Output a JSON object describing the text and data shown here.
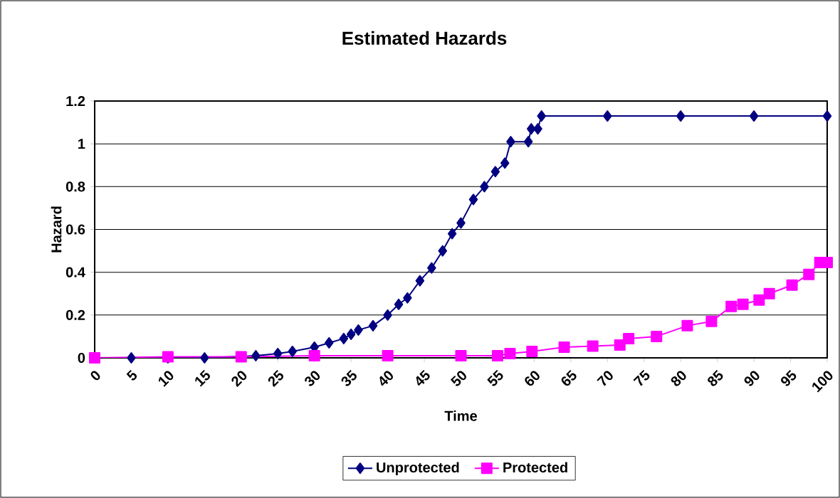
{
  "chart_data": {
    "type": "line",
    "title": "Estimated Hazards",
    "xlabel": "Time",
    "ylabel": "Hazard",
    "xlim": [
      0,
      100
    ],
    "xticks": [
      0,
      5,
      10,
      15,
      20,
      25,
      30,
      35,
      40,
      45,
      50,
      55,
      60,
      65,
      70,
      75,
      80,
      85,
      90,
      95,
      100
    ],
    "ylim": [
      0,
      1.2
    ],
    "yticks": [
      0,
      0.2,
      0.4,
      0.6,
      0.8,
      1,
      1.2
    ],
    "grid": "y",
    "legend": "bottom",
    "series": [
      {
        "name": "Unprotected",
        "color": "#000080",
        "marker": "diamond",
        "x": [
          0,
          5,
          10,
          15,
          20,
          22,
          25,
          27,
          30,
          32,
          34,
          35,
          36,
          38,
          40,
          41.5,
          42.7,
          44.4,
          46,
          47.5,
          48.8,
          50,
          51.7,
          53.2,
          54.7,
          56,
          56.8,
          59.2,
          59.6,
          60.5,
          61,
          70,
          80,
          90,
          100
        ],
        "values": [
          0,
          0,
          0,
          0,
          null,
          0.01,
          0.02,
          0.03,
          0.05,
          0.07,
          0.09,
          0.11,
          0.13,
          0.15,
          0.2,
          0.25,
          0.28,
          0.36,
          0.42,
          0.5,
          0.58,
          0.63,
          0.74,
          0.8,
          0.87,
          0.91,
          1.01,
          1.01,
          1.07,
          1.07,
          1.13,
          1.13,
          1.13,
          1.13,
          1.13
        ]
      },
      {
        "name": "Protected",
        "color": "#ff00ff",
        "marker": "square",
        "x": [
          0,
          10,
          20,
          30,
          40,
          50,
          55,
          56.7,
          59.7,
          64.1,
          68,
          71.7,
          72.9,
          76.7,
          80.9,
          84.2,
          86.9,
          88.5,
          90.7,
          92.1,
          95.2,
          97.5,
          99,
          100
        ],
        "values": [
          0,
          0.005,
          0.005,
          0.01,
          0.01,
          0.01,
          0.01,
          0.02,
          0.03,
          0.05,
          0.055,
          0.06,
          0.09,
          0.1,
          0.15,
          0.17,
          0.24,
          0.25,
          0.27,
          0.3,
          0.34,
          0.39,
          0.445,
          0.445
        ]
      }
    ]
  }
}
